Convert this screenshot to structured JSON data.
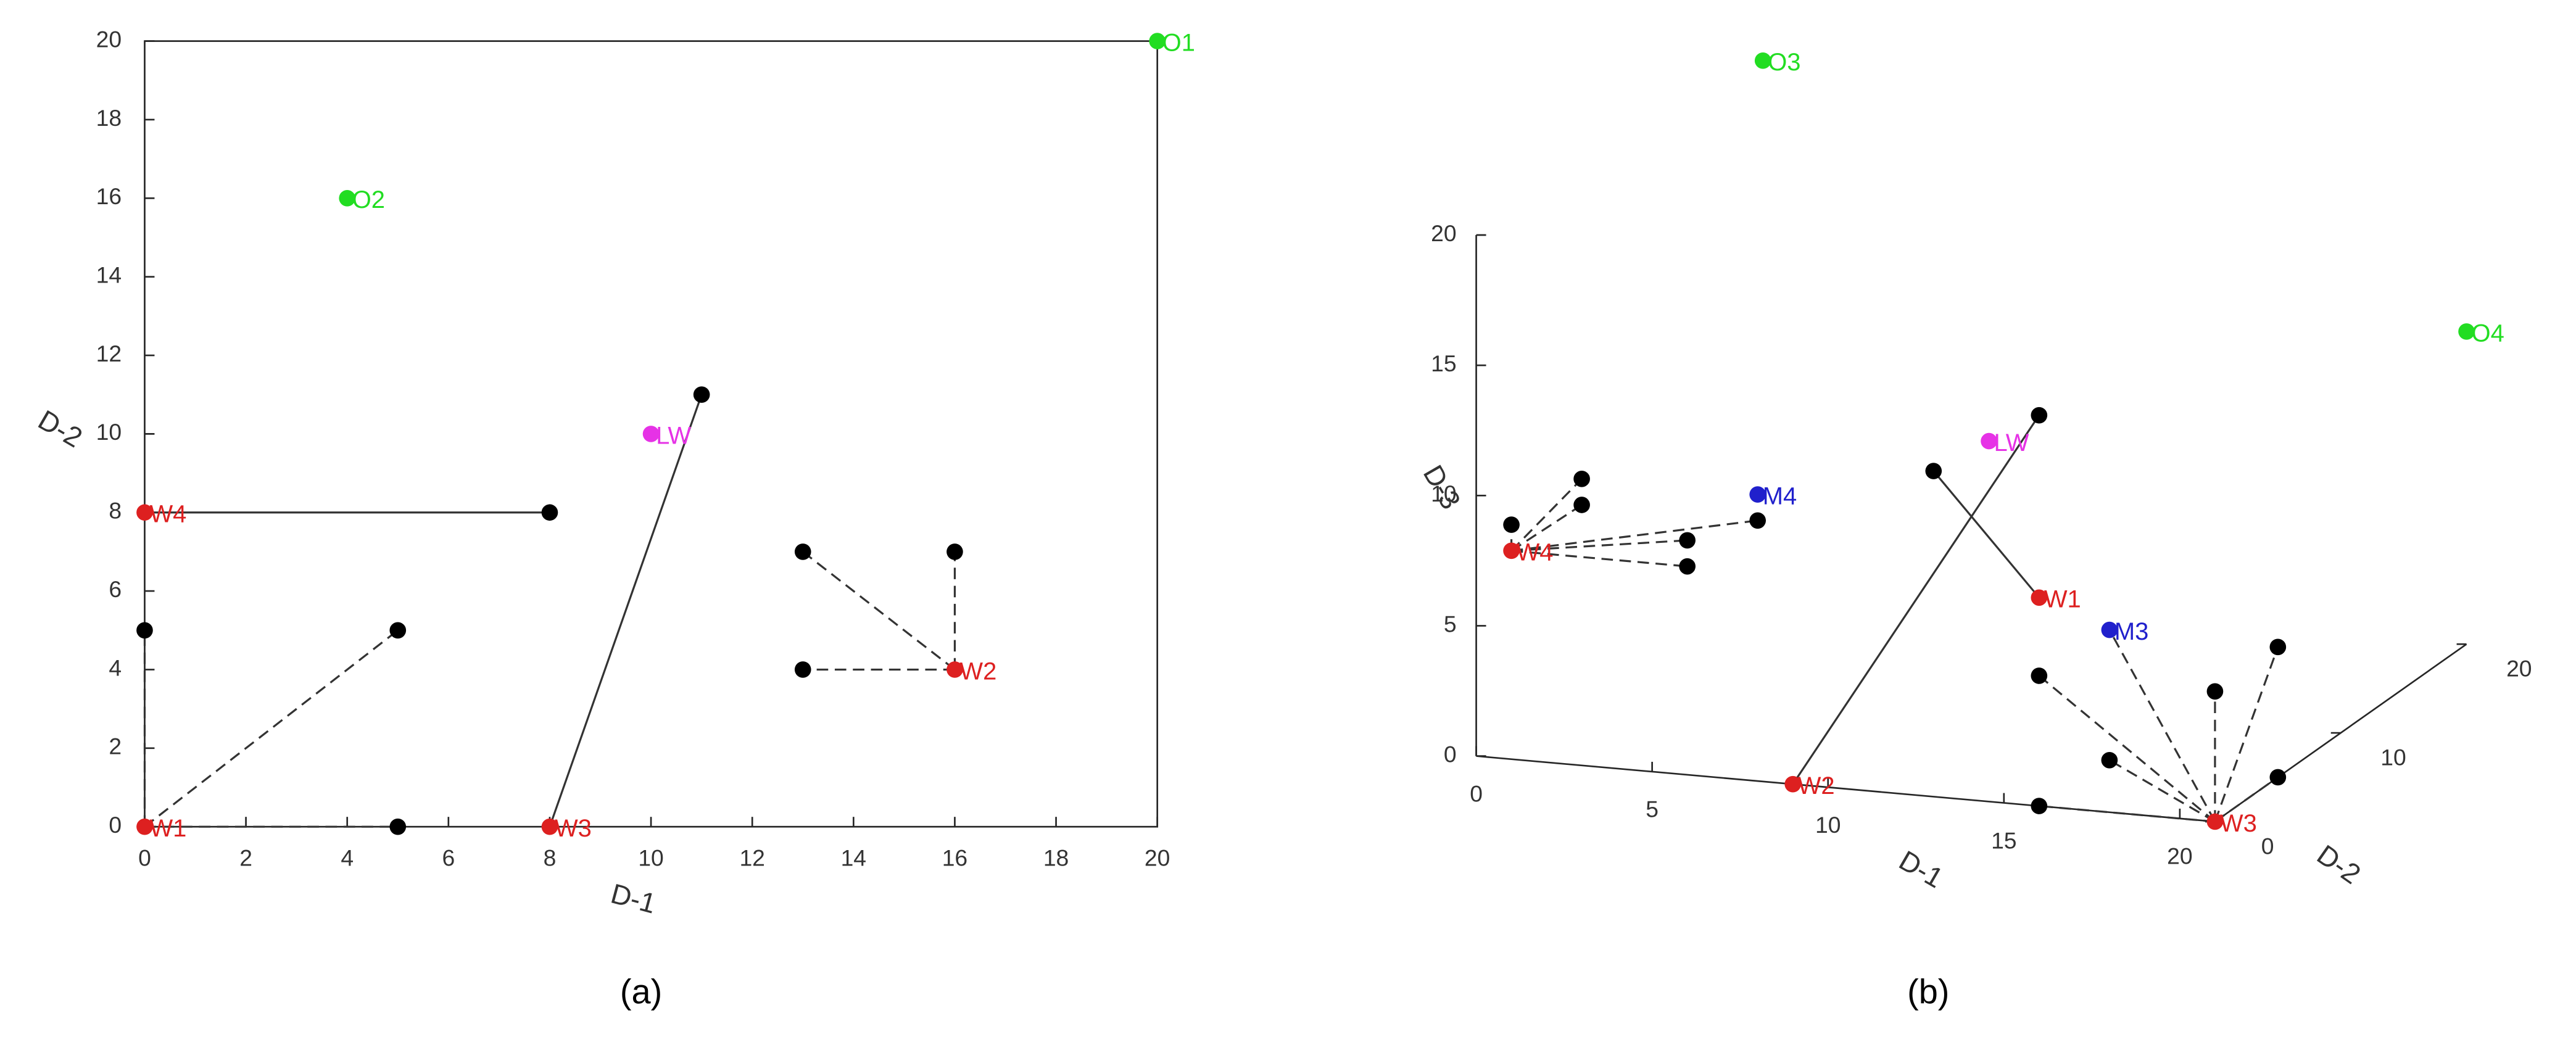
{
  "chart_data": [
    {
      "type": "scatter",
      "caption": "(a)",
      "xlabel": "D-1",
      "ylabel": "D-2",
      "xlim": [
        0,
        20
      ],
      "ylim": [
        0,
        20
      ],
      "xticks": [
        0,
        2,
        4,
        6,
        8,
        10,
        12,
        14,
        16,
        18,
        20
      ],
      "yticks": [
        0,
        2,
        4,
        6,
        8,
        10,
        12,
        14,
        16,
        18,
        20
      ],
      "points": [
        {
          "label": "O1",
          "x": 20,
          "y": 20,
          "color": "#22dd22"
        },
        {
          "label": "O2",
          "x": 4,
          "y": 16,
          "color": "#22dd22"
        },
        {
          "label": "LW",
          "x": 10,
          "y": 10,
          "color": "#e632e6"
        },
        {
          "label": "W4",
          "x": 0,
          "y": 8,
          "color": "#dd2020"
        },
        {
          "label": "W1",
          "x": 0,
          "y": 0,
          "color": "#dd2020"
        },
        {
          "label": "W3",
          "x": 8,
          "y": 0,
          "color": "#dd2020"
        },
        {
          "label": "W2",
          "x": 16,
          "y": 4,
          "color": "#dd2020"
        },
        {
          "x": 8,
          "y": 8,
          "color": "#000000"
        },
        {
          "x": 11,
          "y": 11,
          "color": "#000000"
        },
        {
          "x": 0,
          "y": 5,
          "color": "#000000"
        },
        {
          "x": 5,
          "y": 5,
          "color": "#000000"
        },
        {
          "x": 5,
          "y": 0,
          "color": "#000000"
        },
        {
          "x": 13,
          "y": 7,
          "color": "#000000"
        },
        {
          "x": 16,
          "y": 7,
          "color": "#000000"
        },
        {
          "x": 13,
          "y": 4,
          "color": "#000000"
        }
      ],
      "segments": [
        {
          "x": [
            0,
            8
          ],
          "y": [
            8,
            8
          ],
          "dashed": false
        },
        {
          "x": [
            8,
            11
          ],
          "y": [
            0,
            11
          ],
          "dashed": false
        },
        {
          "x": [
            0,
            0
          ],
          "y": [
            0,
            5
          ],
          "dashed": true
        },
        {
          "x": [
            0,
            5
          ],
          "y": [
            0,
            5
          ],
          "dashed": true
        },
        {
          "x": [
            0,
            5
          ],
          "y": [
            0,
            0
          ],
          "dashed": true
        },
        {
          "x": [
            16,
            13
          ],
          "y": [
            4,
            7
          ],
          "dashed": true
        },
        {
          "x": [
            16,
            16
          ],
          "y": [
            4,
            7
          ],
          "dashed": true
        },
        {
          "x": [
            16,
            13
          ],
          "y": [
            4,
            4
          ],
          "dashed": true
        }
      ]
    },
    {
      "type": "scatter3d",
      "caption": "(b)",
      "xlabel": "D-1",
      "ylabel": "D-2",
      "zlabel": "D-3",
      "xlim": [
        0,
        21
      ],
      "ylim": [
        0,
        20
      ],
      "zlim": [
        0,
        20
      ],
      "xticks": [
        0,
        5,
        10,
        15,
        20
      ],
      "yticks": [
        0,
        10,
        20
      ],
      "zticks": [
        0,
        5,
        10,
        15,
        20
      ],
      "points": [
        {
          "label": "O3",
          "x": 1,
          "y": 20,
          "z": 20,
          "color": "#22dd22"
        },
        {
          "label": "O4",
          "x": 21,
          "y": 20,
          "z": 12,
          "color": "#22dd22"
        },
        {
          "label": "LW",
          "x": 11,
          "y": 10,
          "z": 10,
          "color": "#e632e6"
        },
        {
          "label": "M4",
          "x": 8,
          "y": 0,
          "z": 11,
          "color": "#2020cc"
        },
        {
          "label": "M3",
          "x": 18,
          "y": 0,
          "z": 7,
          "color": "#2020cc"
        },
        {
          "label": "W4",
          "x": 1,
          "y": 0,
          "z": 8,
          "color": "#dd2020"
        },
        {
          "label": "W1",
          "x": 16,
          "y": 0,
          "z": 8,
          "color": "#dd2020"
        },
        {
          "label": "W2",
          "x": 9,
          "y": 0,
          "z": 0,
          "color": "#dd2020"
        },
        {
          "label": "W3",
          "x": 21,
          "y": 0,
          "z": 0,
          "color": "#dd2020"
        },
        {
          "x": 16,
          "y": 0,
          "z": 15,
          "color": "#000000"
        },
        {
          "x": 13,
          "y": 0,
          "z": 12.5,
          "color": "#000000"
        },
        {
          "x": 1,
          "y": 0,
          "z": 9,
          "color": "#000000"
        },
        {
          "x": 3,
          "y": 0,
          "z": 11,
          "color": "#000000"
        },
        {
          "x": 3,
          "y": 0,
          "z": 10,
          "color": "#000000"
        },
        {
          "x": 6,
          "y": 0,
          "z": 9,
          "color": "#000000"
        },
        {
          "x": 6,
          "y": 0,
          "z": 8,
          "color": "#000000"
        },
        {
          "x": 8,
          "y": 0,
          "z": 10,
          "color": "#000000"
        },
        {
          "x": 16,
          "y": 0,
          "z": 5,
          "color": "#000000"
        },
        {
          "x": 18,
          "y": 0,
          "z": 2,
          "color": "#000000"
        },
        {
          "x": 21,
          "y": 0,
          "z": 5,
          "color": "#000000"
        },
        {
          "x": 21,
          "y": 5,
          "z": 5,
          "color": "#000000"
        },
        {
          "x": 21,
          "y": 5,
          "z": 0,
          "color": "#000000"
        },
        {
          "x": 16,
          "y": 0,
          "z": 0,
          "color": "#000000"
        }
      ],
      "segments": [
        {
          "x": [
            9,
            16
          ],
          "y": [
            0,
            0
          ],
          "z": [
            0,
            15
          ],
          "dashed": false
        },
        {
          "x": [
            13,
            16
          ],
          "y": [
            0,
            0
          ],
          "z": [
            12.5,
            8
          ],
          "dashed": false
        },
        {
          "x": [
            1,
            1
          ],
          "y": [
            0,
            0
          ],
          "z": [
            8,
            9
          ],
          "dashed": true
        },
        {
          "x": [
            1,
            3
          ],
          "y": [
            0,
            0
          ],
          "z": [
            8,
            11
          ],
          "dashed": true
        },
        {
          "x": [
            1,
            3
          ],
          "y": [
            0,
            0
          ],
          "z": [
            8,
            10
          ],
          "dashed": true
        },
        {
          "x": [
            1,
            6
          ],
          "y": [
            0,
            0
          ],
          "z": [
            8,
            9
          ],
          "dashed": true
        },
        {
          "x": [
            1,
            6
          ],
          "y": [
            0,
            0
          ],
          "z": [
            8,
            8
          ],
          "dashed": true
        },
        {
          "x": [
            1,
            8
          ],
          "y": [
            0,
            0
          ],
          "z": [
            8,
            10
          ],
          "dashed": true
        },
        {
          "x": [
            21,
            16
          ],
          "y": [
            0,
            0
          ],
          "z": [
            0,
            5
          ],
          "dashed": true
        },
        {
          "x": [
            21,
            18
          ],
          "y": [
            0,
            0
          ],
          "z": [
            0,
            2
          ],
          "dashed": true
        },
        {
          "x": [
            21,
            21
          ],
          "y": [
            0,
            0
          ],
          "z": [
            0,
            5
          ],
          "dashed": true
        },
        {
          "x": [
            21,
            21
          ],
          "y": [
            0,
            5
          ],
          "z": [
            0,
            5
          ],
          "dashed": true
        },
        {
          "x": [
            21,
            21
          ],
          "y": [
            0,
            5
          ],
          "z": [
            0,
            0
          ],
          "dashed": true
        },
        {
          "x": [
            21,
            16
          ],
          "y": [
            0,
            0
          ],
          "z": [
            0,
            0
          ],
          "dashed": true
        },
        {
          "x": [
            21,
            18
          ],
          "y": [
            0,
            0
          ],
          "z": [
            0,
            7
          ],
          "dashed": true
        }
      ]
    }
  ]
}
